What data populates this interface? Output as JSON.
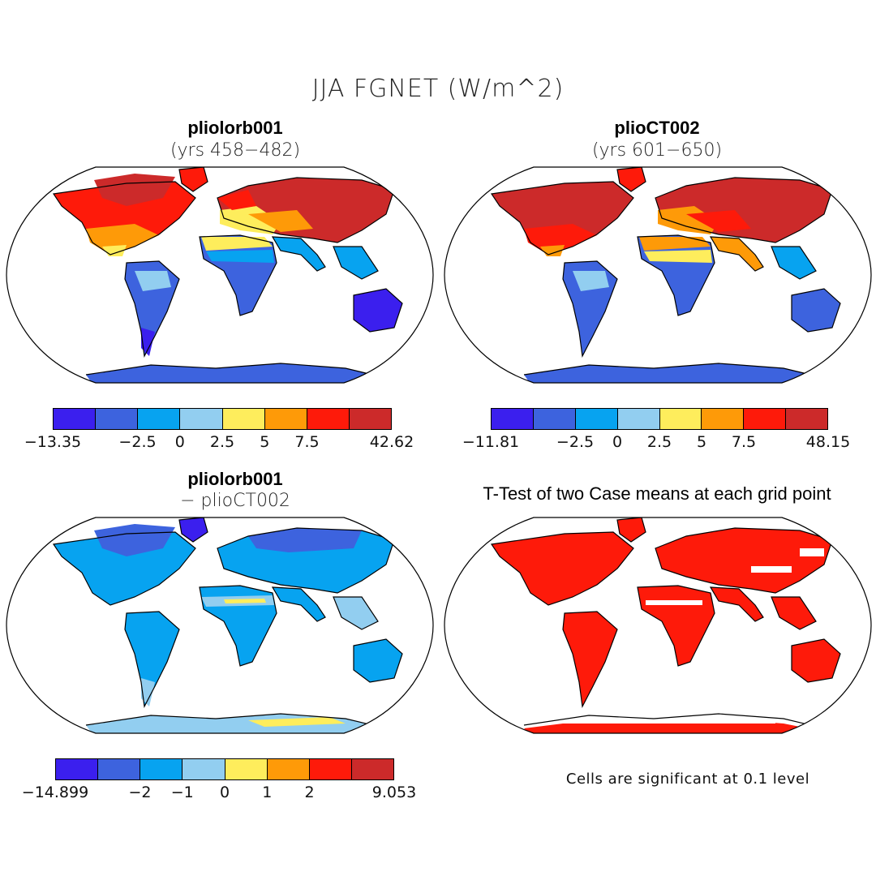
{
  "main_title": "JJA FGNET (W/m^2)",
  "colors": [
    "#3b1fee",
    "#3d63de",
    "#07a3f0",
    "#92cef0",
    "#feed5c",
    "#fe9a08",
    "#fe1a0a",
    "#cc2a2a"
  ],
  "panels": [
    {
      "title": "pliolorb001",
      "subtitle": "(yrs 458−482)",
      "colorbar_labels": [
        "−13.35",
        "−2.5",
        "0",
        "2.5",
        "5",
        "7.5",
        "42.62"
      ]
    },
    {
      "title": "plioCT002",
      "subtitle": "(yrs 601−650)",
      "colorbar_labels": [
        "−11.81",
        "−2.5",
        "0",
        "2.5",
        "5",
        "7.5",
        "48.15"
      ]
    },
    {
      "title": "pliolorb001",
      "subtitle": "− plioCT002",
      "colorbar_labels": [
        "−14.899",
        "−2",
        "−1",
        "0",
        "1",
        "2",
        "9.053"
      ]
    },
    {
      "title": "T-Test of two Case means at each grid point",
      "note": "Cells are significant at 0.1 level"
    }
  ]
}
